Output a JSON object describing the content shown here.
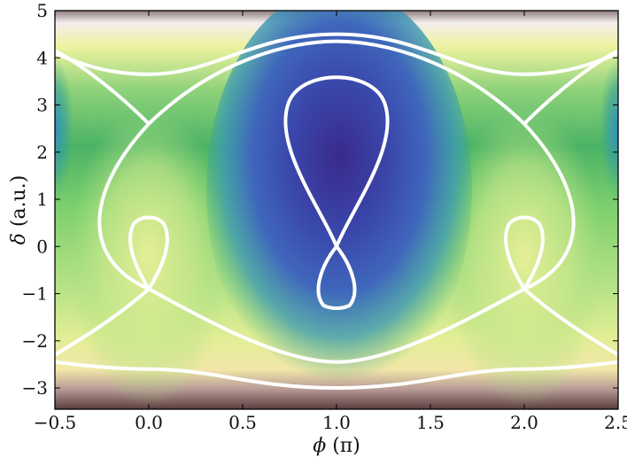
{
  "chart_data": {
    "type": "heatmap",
    "title": "",
    "xlabel": {
      "symbol": "ϕ",
      "unit": "(π)"
    },
    "ylabel": {
      "symbol": "δ",
      "unit": "(a.u.)"
    },
    "xlim": [
      -0.5,
      2.5
    ],
    "ylim": [
      -3.45,
      5.0
    ],
    "x_ticks": [
      -0.5,
      0.0,
      0.5,
      1.0,
      1.5,
      2.0,
      2.5
    ],
    "x_tick_labels": [
      "−0.5",
      "0.0",
      "0.5",
      "1.0",
      "1.5",
      "2.0",
      "2.5"
    ],
    "y_ticks": [
      -3,
      -2,
      -1,
      0,
      1,
      2,
      3,
      4,
      5
    ],
    "y_tick_labels": [
      "−3",
      "−2",
      "−1",
      "0",
      "1",
      "2",
      "3",
      "4",
      "5"
    ],
    "grid": false,
    "legend": "none",
    "colormap": {
      "name": "gist_earth-like",
      "stops": [
        "#ffffff",
        "#8a6a6a",
        "#e8eea0",
        "#b9e58f",
        "#3fb36a",
        "#3e8fbf",
        "#3a50b0",
        "#3a2c8f"
      ]
    },
    "contour_color": "#ffffff",
    "contours": [
      {
        "id": "central-figure-eight",
        "crossing": [
          1.0,
          0.0
        ],
        "upper_lobe_top": [
          1.0,
          3.6
        ],
        "lower_lobe_bottom": [
          1.0,
          -1.3
        ]
      },
      {
        "id": "side-teardrop-left",
        "apex": [
          0.0,
          -0.9
        ],
        "top": [
          0.0,
          0.6
        ]
      },
      {
        "id": "side-teardrop-right",
        "apex": [
          2.0,
          -0.9
        ],
        "top": [
          2.0,
          0.6
        ]
      },
      {
        "id": "separatrix",
        "upper_crossings": [
          [
            0.0,
            2.6
          ],
          [
            2.0,
            2.6
          ]
        ],
        "lower_crossings": [
          [
            0.0,
            -0.9
          ],
          [
            2.0,
            -0.9
          ]
        ],
        "top_y": 4.35,
        "bottom_y": -2.45
      },
      {
        "id": "top-arc",
        "y_at_x0": 3.65,
        "y_at_x1": 4.5
      },
      {
        "id": "bottom-arc",
        "y_at_x0": -2.6,
        "y_at_x1": -3.0
      }
    ]
  }
}
